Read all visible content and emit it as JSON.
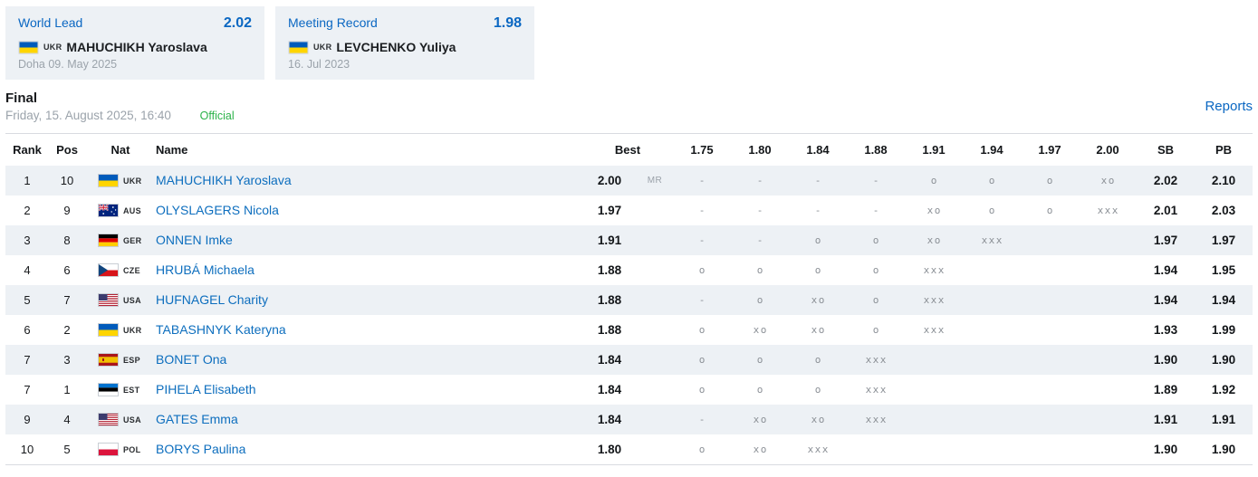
{
  "colors": {
    "accent_blue": "#0a67c2",
    "link_blue": "#0d6ebe",
    "status_green": "#2cb34a",
    "stripe_bg": "#edf1f5",
    "muted_gray": "#9ba3ab"
  },
  "records": [
    {
      "title": "World Lead",
      "value": "2.02",
      "nat": "UKR",
      "athlete": "MAHUCHIKH Yaroslava",
      "detail": "Doha 09. May 2025"
    },
    {
      "title": "Meeting Record",
      "value": "1.98",
      "nat": "UKR",
      "athlete": "LEVCHENKO Yuliya",
      "detail": "16. Jul 2023"
    }
  ],
  "event": {
    "round": "Final",
    "datetime": "Friday, 15. August 2025, 16:40",
    "status": "Official",
    "reports_label": "Reports"
  },
  "table": {
    "headers": {
      "rank": "Rank",
      "pos": "Pos",
      "nat": "Nat",
      "name": "Name",
      "best": "Best",
      "heights": [
        "1.75",
        "1.80",
        "1.84",
        "1.88",
        "1.91",
        "1.94",
        "1.97",
        "2.00"
      ],
      "sb": "SB",
      "pb": "PB"
    },
    "rows": [
      {
        "rank": "1",
        "pos": "10",
        "nat": "UKR",
        "name": "MAHUCHIKH Yaroslava",
        "best": "2.00",
        "marker": "MR",
        "attempts": [
          "-",
          "-",
          "-",
          "-",
          "o",
          "o",
          "o",
          "xo"
        ],
        "sb": "2.02",
        "pb": "2.10"
      },
      {
        "rank": "2",
        "pos": "9",
        "nat": "AUS",
        "name": "OLYSLAGERS Nicola",
        "best": "1.97",
        "marker": "",
        "attempts": [
          "-",
          "-",
          "-",
          "-",
          "xo",
          "o",
          "o",
          "xxx"
        ],
        "sb": "2.01",
        "pb": "2.03"
      },
      {
        "rank": "3",
        "pos": "8",
        "nat": "GER",
        "name": "ONNEN Imke",
        "best": "1.91",
        "marker": "",
        "attempts": [
          "-",
          "-",
          "o",
          "o",
          "xo",
          "xxx",
          "",
          ""
        ],
        "sb": "1.97",
        "pb": "1.97"
      },
      {
        "rank": "4",
        "pos": "6",
        "nat": "CZE",
        "name": "HRUBÁ Michaela",
        "best": "1.88",
        "marker": "",
        "attempts": [
          "o",
          "o",
          "o",
          "o",
          "xxx",
          "",
          "",
          ""
        ],
        "sb": "1.94",
        "pb": "1.95"
      },
      {
        "rank": "5",
        "pos": "7",
        "nat": "USA",
        "name": "HUFNAGEL Charity",
        "best": "1.88",
        "marker": "",
        "attempts": [
          "-",
          "o",
          "xo",
          "o",
          "xxx",
          "",
          "",
          ""
        ],
        "sb": "1.94",
        "pb": "1.94"
      },
      {
        "rank": "6",
        "pos": "2",
        "nat": "UKR",
        "name": "TABASHNYK Kateryna",
        "best": "1.88",
        "marker": "",
        "attempts": [
          "o",
          "xo",
          "xo",
          "o",
          "xxx",
          "",
          "",
          ""
        ],
        "sb": "1.93",
        "pb": "1.99"
      },
      {
        "rank": "7",
        "pos": "3",
        "nat": "ESP",
        "name": "BONET Ona",
        "best": "1.84",
        "marker": "",
        "attempts": [
          "o",
          "o",
          "o",
          "xxx",
          "",
          "",
          "",
          ""
        ],
        "sb": "1.90",
        "pb": "1.90"
      },
      {
        "rank": "7",
        "pos": "1",
        "nat": "EST",
        "name": "PIHELA Elisabeth",
        "best": "1.84",
        "marker": "",
        "attempts": [
          "o",
          "o",
          "o",
          "xxx",
          "",
          "",
          "",
          ""
        ],
        "sb": "1.89",
        "pb": "1.92"
      },
      {
        "rank": "9",
        "pos": "4",
        "nat": "USA",
        "name": "GATES Emma",
        "best": "1.84",
        "marker": "",
        "attempts": [
          "-",
          "xo",
          "xo",
          "xxx",
          "",
          "",
          "",
          ""
        ],
        "sb": "1.91",
        "pb": "1.91"
      },
      {
        "rank": "10",
        "pos": "5",
        "nat": "POL",
        "name": "BORYS Paulina",
        "best": "1.80",
        "marker": "",
        "attempts": [
          "o",
          "xo",
          "xxx",
          "",
          "",
          "",
          "",
          ""
        ],
        "sb": "1.90",
        "pb": "1.90"
      }
    ]
  }
}
